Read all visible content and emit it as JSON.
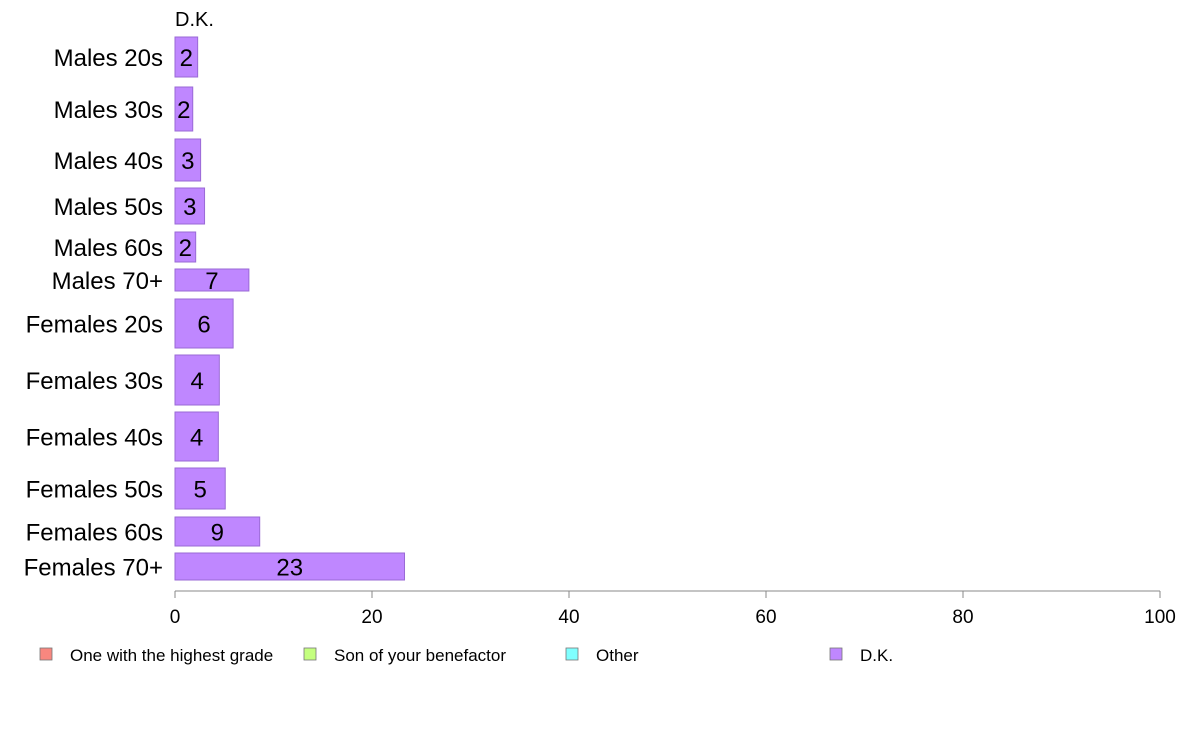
{
  "chart_data": {
    "type": "bar",
    "orientation": "horizontal",
    "panel_title": "D.K.",
    "categories": [
      "Males 20s",
      "Males 30s",
      "Males 40s",
      "Males 50s",
      "Males 60s",
      "Males 70+",
      "Females 20s",
      "Females 30s",
      "Females 40s",
      "Females 50s",
      "Females 60s",
      "Females 70+"
    ],
    "values": [
      2.3,
      1.8,
      2.6,
      3.0,
      2.1,
      7.5,
      5.9,
      4.5,
      4.4,
      5.1,
      8.6,
      23.3
    ],
    "data_labels": [
      "2",
      "2",
      "3",
      "3",
      "2",
      "7",
      "6",
      "4",
      "4",
      "5",
      "9",
      "23"
    ],
    "xlim": [
      0,
      100
    ],
    "xticks": [
      "0",
      "20",
      "40",
      "60",
      "80",
      "100"
    ],
    "bar_color": "#bf87ff",
    "bar_border": "#9a6ad6",
    "grid": false,
    "legend_position": "bottom",
    "legend": [
      {
        "label": "One with the highest grade",
        "color": "#f8877f"
      },
      {
        "label": "Son of your benefactor",
        "color": "#c4ff7f"
      },
      {
        "label": "Other",
        "color": "#7fffff"
      },
      {
        "label": "D.K.",
        "color": "#bf87ff"
      }
    ]
  }
}
